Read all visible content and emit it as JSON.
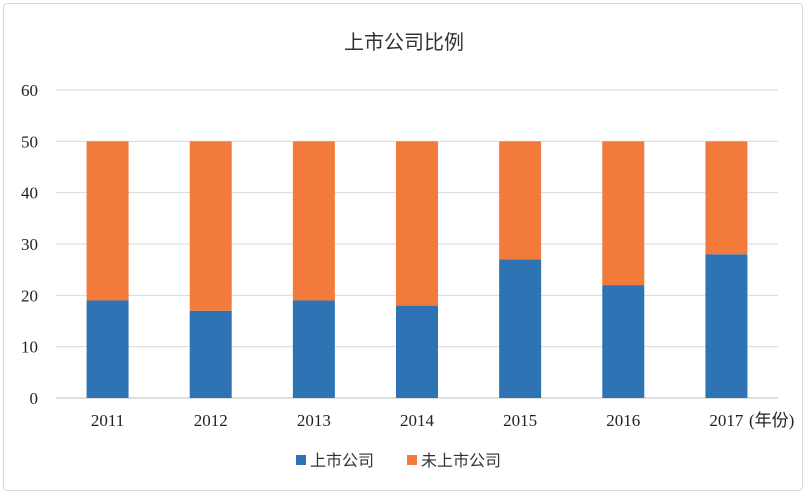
{
  "chart_data": {
    "type": "bar",
    "stacked": true,
    "title": "上市公司比例",
    "xlabel": "",
    "ylabel": "",
    "x_unit_label": "(年份)",
    "categories": [
      "2011",
      "2012",
      "2013",
      "2014",
      "2015",
      "2016",
      "2017"
    ],
    "ylim": [
      0,
      60
    ],
    "yticks": [
      0,
      10,
      20,
      30,
      40,
      50,
      60
    ],
    "grid": true,
    "legend_position": "bottom",
    "series": [
      {
        "name": "上市公司",
        "color": "#2e74b5",
        "values": [
          19,
          17,
          19,
          18,
          27,
          22,
          28
        ]
      },
      {
        "name": "未上市公司",
        "color": "#f27a3a",
        "values": [
          31,
          33,
          31,
          32,
          23,
          28,
          22
        ]
      }
    ]
  }
}
